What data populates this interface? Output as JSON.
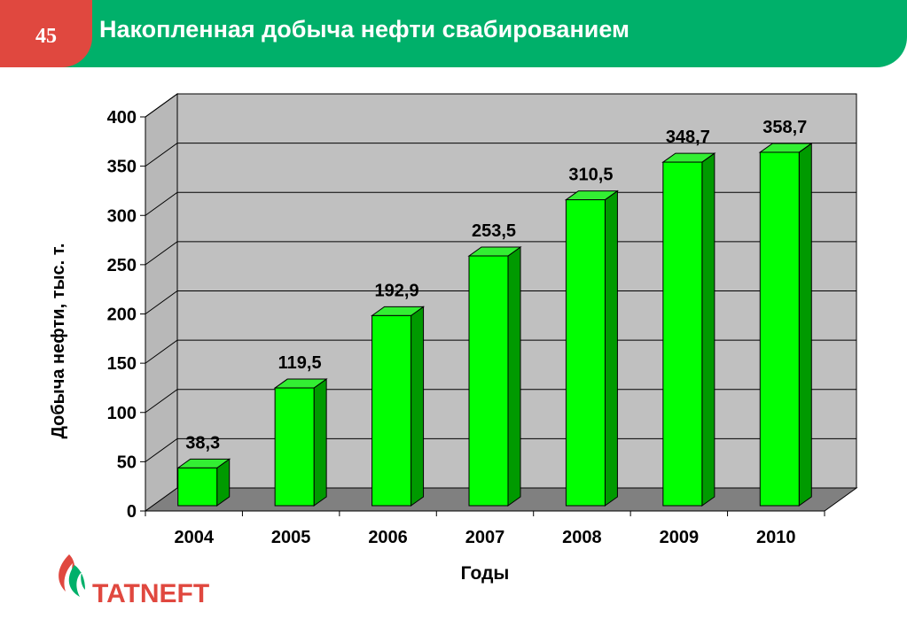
{
  "header": {
    "slide_number": "45",
    "title": "Накопленная добыча нефти свабированием"
  },
  "logo": {
    "text": "TATNEFT"
  },
  "colors": {
    "header_green": "#00b06a",
    "header_red": "#e0483f",
    "bar_front": "#00ff00",
    "bar_side": "#009a00",
    "bar_top": "#33ee33",
    "wall": "#c0c0c0",
    "floor": "#808080"
  },
  "chart_data": {
    "type": "bar",
    "categories": [
      "2004",
      "2005",
      "2006",
      "2007",
      "2008",
      "2009",
      "2010"
    ],
    "values": [
      38.3,
      119.5,
      192.9,
      253.5,
      310.5,
      348.7,
      358.7
    ],
    "value_labels": [
      "38,3",
      "119,5",
      "192,9",
      "253,5",
      "310,5",
      "348,7",
      "358,7"
    ],
    "xlabel": "Годы",
    "ylabel": "Добыча нефти, тыс. т.",
    "ylim": [
      0,
      400
    ],
    "yticks": [
      0,
      50,
      100,
      150,
      200,
      250,
      300,
      350,
      400
    ],
    "grid": true,
    "legend": "none"
  }
}
